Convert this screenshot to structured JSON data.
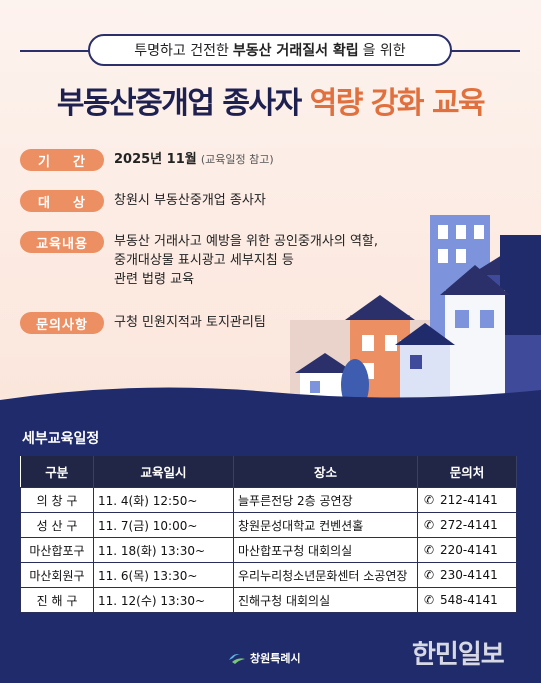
{
  "header": {
    "subtitle_pre": "투명하고 건전한",
    "subtitle_bold": "부동산 거래질서 확립",
    "subtitle_post": "을 위한",
    "title_main": "부동산중개업 종사자",
    "title_highlight": "역량 강화 교육"
  },
  "info": {
    "period_label_1": "기",
    "period_label_2": "간",
    "period_value": "2025년 11월",
    "period_note": "(교육일정 참고)",
    "target_label_1": "대",
    "target_label_2": "상",
    "target_value": "창원시 부동산중개업 종사자",
    "content_label": "교육내용",
    "content_line1": "부동산 거래사고 예방을 위한 공인중개사의 역할,",
    "content_line2": "중개대상물 표시광고 세부지침 등",
    "content_line3": "관련 법령 교육",
    "contact_label": "문의사항",
    "contact_value": "구청 민원지적과 토지관리팀"
  },
  "schedule": {
    "title": "세부교육일정",
    "headers": [
      "구분",
      "교육일시",
      "장소",
      "문의처"
    ],
    "rows": [
      [
        "의 창 구",
        "11. 4(화) 12:50~",
        "늘푸른전당 2층 공연장",
        "212-4141"
      ],
      [
        "성 산 구",
        "11. 7(금) 10:00~",
        "창원문성대학교 컨벤션홀",
        "272-4141"
      ],
      [
        "마산합포구",
        "11. 18(화) 13:30~",
        "마산합포구청 대회의실",
        "220-4141"
      ],
      [
        "마산회원구",
        "11. 6(목) 13:30~",
        "우리누리청소년문화센터 소공연장",
        "230-4141"
      ],
      [
        "진 해 구",
        "11. 12(수) 13:30~",
        "진해구청 대회의실",
        "548-4141"
      ]
    ]
  },
  "footer": {
    "logo_text": "창원특례시",
    "watermark": "한민일보"
  },
  "colors": {
    "accent": "#ec8f63",
    "navy": "#1f2b6b",
    "title": "#1e2050"
  }
}
